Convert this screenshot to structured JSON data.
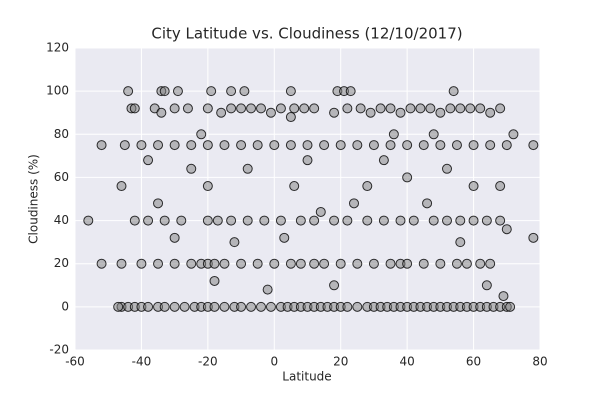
{
  "chart_data": {
    "type": "scatter",
    "title": "City Latitude vs. Cloudiness (12/10/2017)",
    "x_label": "Latitude",
    "y_label": "Cloudiness (%)",
    "xlim": [
      -60,
      80
    ],
    "xticks": [
      -60,
      -40,
      -20,
      0,
      20,
      40,
      60,
      80
    ],
    "ylim": [
      -20,
      120
    ],
    "yticks": [
      -20,
      0,
      20,
      40,
      60,
      80,
      100,
      120
    ],
    "grid": true,
    "color": "#808080",
    "edgecolor": "#000000",
    "x": [
      -46,
      -44,
      -42,
      -40,
      -38,
      -35,
      -33,
      -30,
      -27,
      -24,
      -22,
      -20,
      -18,
      -15,
      -12,
      -10,
      -7,
      -4,
      -1,
      2,
      4,
      6,
      8,
      10,
      12,
      14,
      16,
      18,
      20,
      22,
      25,
      28,
      30,
      32,
      34,
      36,
      38,
      40,
      42,
      44,
      46,
      48,
      50,
      52,
      54,
      56,
      58,
      60,
      62,
      64,
      66,
      68,
      70,
      71,
      -46,
      -40,
      -35,
      -30,
      -25,
      -22,
      -20,
      -18,
      -15,
      -10,
      -5,
      0,
      5,
      8,
      12,
      15,
      20,
      25,
      30,
      35,
      38,
      40,
      45,
      50,
      55,
      58,
      62,
      65,
      -42,
      -38,
      -33,
      -28,
      -20,
      -17,
      -13,
      -8,
      -3,
      2,
      8,
      12,
      18,
      22,
      28,
      33,
      38,
      42,
      48,
      52,
      56,
      60,
      64,
      68,
      -52,
      -45,
      -40,
      -35,
      -30,
      -25,
      -20,
      -15,
      -10,
      -5,
      0,
      5,
      10,
      15,
      20,
      25,
      30,
      35,
      40,
      45,
      50,
      55,
      60,
      65,
      70,
      78,
      -43,
      -36,
      -34,
      -30,
      -26,
      -20,
      -16,
      -13,
      -10,
      -7,
      -4,
      -1,
      2,
      6,
      9,
      12,
      18,
      22,
      26,
      29,
      32,
      35,
      38,
      41,
      44,
      47,
      50,
      53,
      56,
      59,
      62,
      65,
      68,
      -44,
      -34,
      -33,
      -29,
      -19,
      -13,
      -9,
      5,
      19,
      21,
      23,
      54,
      -56,
      -52,
      -46,
      -42,
      -38,
      -35,
      -30,
      -25,
      -20,
      -18,
      -12,
      -8,
      -2,
      3,
      6,
      10,
      14,
      18,
      24,
      28,
      33,
      40,
      46,
      52,
      56,
      60,
      64,
      68,
      70,
      72,
      78,
      48,
      36,
      -22,
      5,
      -47,
      69
    ],
    "values": [
      0,
      0,
      0,
      0,
      0,
      0,
      0,
      0,
      0,
      0,
      0,
      0,
      0,
      0,
      0,
      0,
      0,
      0,
      0,
      0,
      0,
      0,
      0,
      0,
      0,
      0,
      0,
      0,
      0,
      0,
      0,
      0,
      0,
      0,
      0,
      0,
      0,
      0,
      0,
      0,
      0,
      0,
      0,
      0,
      0,
      0,
      0,
      0,
      0,
      0,
      0,
      0,
      0,
      0,
      20,
      20,
      20,
      20,
      20,
      20,
      20,
      20,
      20,
      20,
      20,
      20,
      20,
      20,
      20,
      20,
      20,
      20,
      20,
      20,
      20,
      20,
      20,
      20,
      20,
      20,
      20,
      20,
      40,
      40,
      40,
      40,
      40,
      40,
      40,
      40,
      40,
      40,
      40,
      40,
      40,
      40,
      40,
      40,
      40,
      40,
      40,
      40,
      40,
      40,
      40,
      40,
      75,
      75,
      75,
      75,
      75,
      75,
      75,
      75,
      75,
      75,
      75,
      75,
      75,
      75,
      75,
      75,
      75,
      75,
      75,
      75,
      75,
      75,
      75,
      75,
      75,
      75,
      92,
      92,
      90,
      92,
      92,
      92,
      90,
      92,
      92,
      92,
      92,
      90,
      92,
      92,
      92,
      92,
      90,
      92,
      92,
      90,
      92,
      92,
      90,
      92,
      92,
      92,
      90,
      92,
      92,
      92,
      92,
      90,
      92,
      100,
      100,
      100,
      100,
      100,
      100,
      100,
      100,
      100,
      100,
      100,
      100,
      40,
      20,
      56,
      92,
      68,
      48,
      32,
      64,
      56,
      12,
      30,
      64,
      8,
      32,
      56,
      68,
      44,
      10,
      48,
      56,
      68,
      60,
      48,
      64,
      30,
      56,
      10,
      56,
      36,
      80,
      32,
      80,
      80,
      80,
      88,
      0,
      5
    ]
  }
}
